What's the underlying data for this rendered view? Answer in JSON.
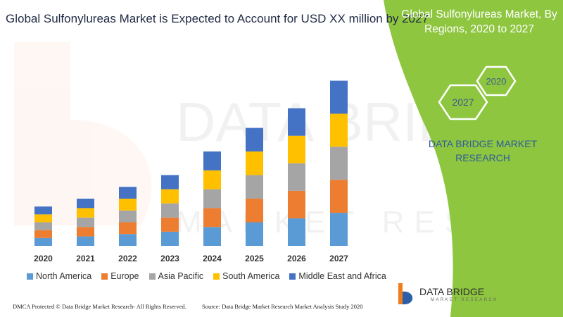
{
  "title": "Global Sulfonylureas Market is Expected to Account for USD XX million by 2027",
  "side_panel": {
    "title": "Global Sulfonylureas Market, By Regions, 2020 to 2027",
    "hex_start": "2027",
    "hex_end": "2020",
    "brand": "DATA BRIDGE MARKET RESEARCH"
  },
  "footer": {
    "left": "DMCA Protected © Data Bridge Market Research- All Rights Reserved.",
    "right": "Source: Data Bridge Market Research Market Analysis Study 2020"
  },
  "logo": {
    "name": "DATA BRIDGE",
    "sub": "MARKET RESEARCH",
    "colors": {
      "orange": "#f07d1a",
      "blue": "#2b5fa8"
    }
  },
  "watermark": {
    "line1": "DATA BRIDGE",
    "line2": "MARKET RESEARCH"
  },
  "chart_data": {
    "type": "bar",
    "stacked": true,
    "categories": [
      "2020",
      "2021",
      "2022",
      "2023",
      "2024",
      "2025",
      "2026",
      "2027"
    ],
    "series": [
      {
        "name": "North America",
        "color": "#5b9bd5",
        "values": [
          10,
          12,
          15,
          18,
          24,
          30,
          35,
          42
        ]
      },
      {
        "name": "Europe",
        "color": "#ed7d31",
        "values": [
          10,
          12,
          15,
          18,
          24,
          30,
          35,
          42
        ]
      },
      {
        "name": "Asia Pacific",
        "color": "#a5a5a5",
        "values": [
          10,
          12,
          15,
          18,
          24,
          30,
          35,
          42
        ]
      },
      {
        "name": "South America",
        "color": "#ffc000",
        "values": [
          10,
          12,
          15,
          18,
          24,
          30,
          35,
          42
        ]
      },
      {
        "name": "Middle East and Africa",
        "color": "#4472c4",
        "values": [
          10,
          12,
          15,
          18,
          24,
          30,
          35,
          42
        ]
      }
    ],
    "ylim": [
      0,
      215
    ],
    "grid": false,
    "axes_visible": false,
    "legend": "bottom"
  }
}
